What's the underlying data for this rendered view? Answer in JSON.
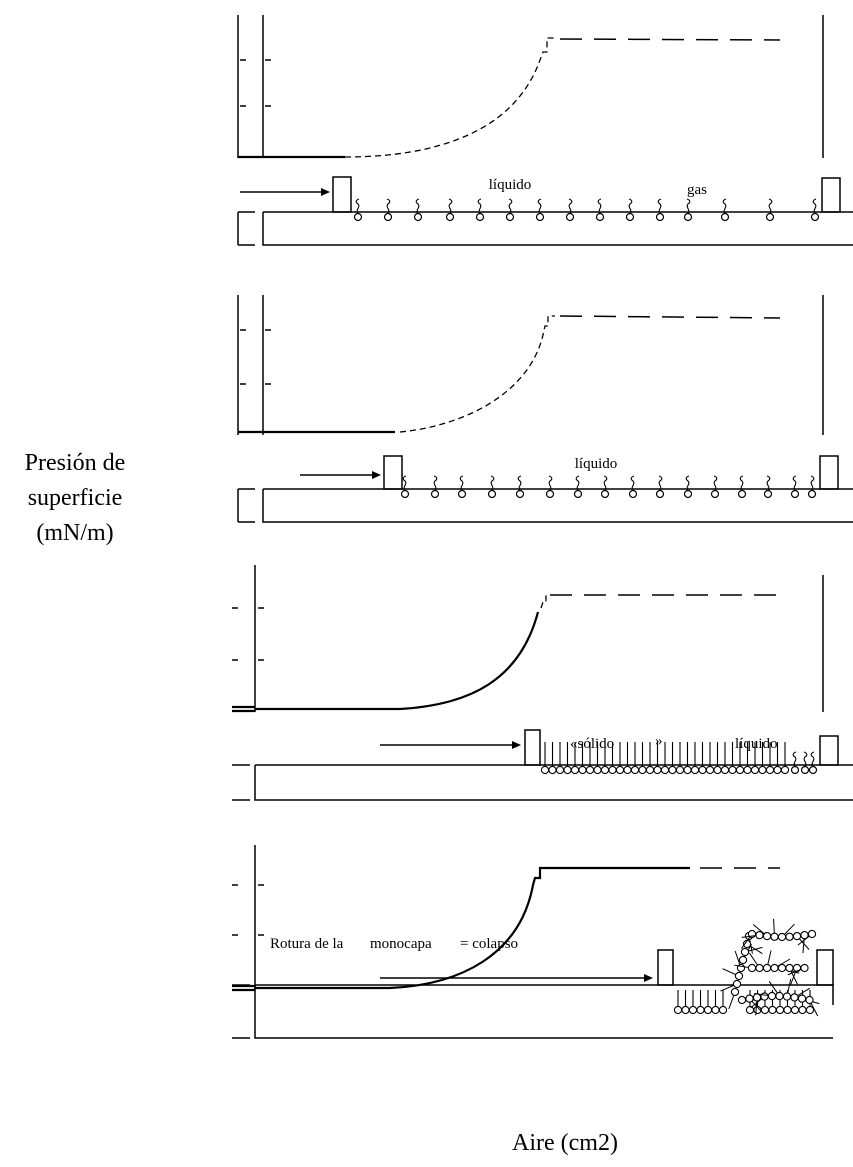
{
  "y_axis_label": [
    "Presión de",
    "superficie",
    "(mN/m)"
  ],
  "x_axis_label": "Aire (cm2)",
  "panels": [
    {
      "labels": [
        "líquido",
        "gas"
      ]
    },
    {
      "labels": [
        "líquido"
      ]
    },
    {
      "labels": [
        "«sólido",
        "»",
        "líquido"
      ]
    },
    {
      "labels": [
        "Rotura de la",
        "monocapa",
        "= colapso"
      ]
    }
  ]
}
